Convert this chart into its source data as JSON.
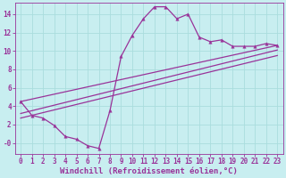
{
  "title": "",
  "xlabel": "Windchill (Refroidissement éolien,°C)",
  "ylabel": "",
  "bg_color": "#c8eef0",
  "line_color": "#993399",
  "grid_color": "#aadddd",
  "text_color": "#993399",
  "xlim": [
    -0.5,
    23.5
  ],
  "ylim": [
    -1.2,
    15.2
  ],
  "yticks": [
    0,
    2,
    4,
    6,
    8,
    10,
    12,
    14
  ],
  "ytick_labels": [
    "-0",
    "2",
    "4",
    "6",
    "8",
    "10",
    "12",
    "14"
  ],
  "xticks": [
    0,
    1,
    2,
    3,
    4,
    5,
    6,
    7,
    8,
    9,
    10,
    11,
    12,
    13,
    14,
    15,
    16,
    17,
    18,
    19,
    20,
    21,
    22,
    23
  ],
  "curve_x": [
    0,
    1,
    2,
    3,
    4,
    5,
    6,
    7,
    8,
    9,
    10,
    11,
    12,
    13,
    14,
    15,
    16,
    17,
    18,
    19,
    20,
    21,
    22,
    23
  ],
  "curve_y": [
    4.5,
    3.0,
    2.7,
    1.9,
    0.7,
    0.4,
    -0.3,
    -0.6,
    3.5,
    9.4,
    11.7,
    13.5,
    14.8,
    14.8,
    13.5,
    14.0,
    11.5,
    11.0,
    11.2,
    10.5,
    10.5,
    10.5,
    10.8,
    10.6
  ],
  "line1_x": [
    0,
    23
  ],
  "line1_y": [
    4.5,
    10.6
  ],
  "line2_x": [
    0,
    23
  ],
  "line2_y": [
    3.2,
    10.1
  ],
  "line3_x": [
    0,
    23
  ],
  "line3_y": [
    2.7,
    9.5
  ],
  "fontsize_tick": 5.5,
  "fontsize_label": 6.5
}
